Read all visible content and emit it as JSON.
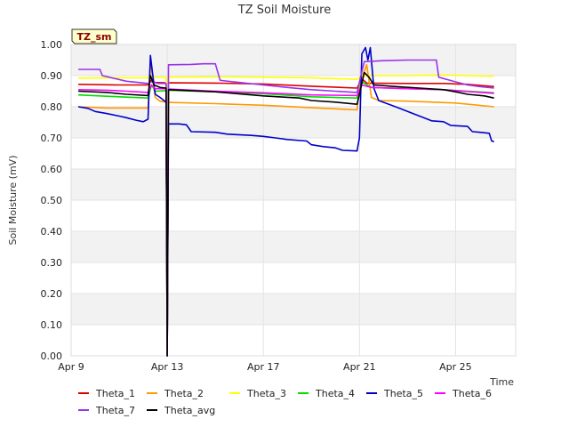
{
  "chart_data": {
    "type": "line",
    "title": "TZ Soil Moisture",
    "badge": "TZ_sm",
    "xlabel": "Time",
    "ylabel": "Soil Moisture (mV)",
    "xlim": [
      9.0,
      27.5
    ],
    "ylim": [
      0.0,
      1.0
    ],
    "x_ticks": [
      {
        "value": 9,
        "label": "Apr 9"
      },
      {
        "value": 13,
        "label": "Apr 13"
      },
      {
        "value": 17,
        "label": "Apr 17"
      },
      {
        "value": 21,
        "label": "Apr 21"
      },
      {
        "value": 25,
        "label": "Apr 25"
      }
    ],
    "y_ticks": [
      "0.00",
      "0.10",
      "0.20",
      "0.30",
      "0.40",
      "0.50",
      "0.60",
      "0.70",
      "0.80",
      "0.90",
      "1.00"
    ],
    "series": [
      {
        "name": "Theta_1",
        "color": "#dd0000",
        "points": [
          [
            9.3,
            0.872
          ],
          [
            11,
            0.87
          ],
          [
            12.2,
            0.87
          ],
          [
            12.35,
            0.885
          ],
          [
            12.5,
            0.878
          ],
          [
            12.95,
            0.877
          ],
          [
            13.0,
            0.0
          ],
          [
            13.05,
            0.877
          ],
          [
            15,
            0.876
          ],
          [
            17,
            0.873
          ],
          [
            19,
            0.866
          ],
          [
            20.9,
            0.86
          ],
          [
            21.1,
            0.89
          ],
          [
            21.3,
            0.876
          ],
          [
            23,
            0.875
          ],
          [
            24.5,
            0.875
          ],
          [
            25.5,
            0.872
          ],
          [
            26.6,
            0.865
          ]
        ]
      },
      {
        "name": "Theta_2",
        "color": "#ff9900",
        "points": [
          [
            9.3,
            0.8
          ],
          [
            10.5,
            0.796
          ],
          [
            12.2,
            0.796
          ],
          [
            12.3,
            0.95
          ],
          [
            12.5,
            0.83
          ],
          [
            12.7,
            0.818
          ],
          [
            12.95,
            0.815
          ],
          [
            13.0,
            0.0
          ],
          [
            13.05,
            0.814
          ],
          [
            15,
            0.81
          ],
          [
            17,
            0.805
          ],
          [
            19,
            0.797
          ],
          [
            20.9,
            0.79
          ],
          [
            21.0,
            0.87
          ],
          [
            21.3,
            0.935
          ],
          [
            21.5,
            0.83
          ],
          [
            21.8,
            0.82
          ],
          [
            23,
            0.818
          ],
          [
            25,
            0.812
          ],
          [
            26.6,
            0.8
          ]
        ]
      },
      {
        "name": "Theta_3",
        "color": "#ffff00",
        "points": [
          [
            9.3,
            0.892
          ],
          [
            11,
            0.893
          ],
          [
            12.2,
            0.893
          ],
          [
            12.3,
            0.895
          ],
          [
            12.95,
            0.895
          ],
          [
            13.0,
            0.0
          ],
          [
            13.05,
            0.895
          ],
          [
            15,
            0.896
          ],
          [
            17,
            0.895
          ],
          [
            19,
            0.893
          ],
          [
            20.9,
            0.888
          ],
          [
            21.1,
            0.9
          ],
          [
            23,
            0.9
          ],
          [
            24.5,
            0.902
          ],
          [
            26.6,
            0.898
          ]
        ]
      },
      {
        "name": "Theta_4",
        "color": "#00dd00",
        "points": [
          [
            9.3,
            0.838
          ],
          [
            11,
            0.832
          ],
          [
            12.2,
            0.828
          ],
          [
            12.35,
            0.87
          ],
          [
            12.5,
            0.85
          ],
          [
            12.95,
            0.852
          ],
          [
            13.0,
            0.0
          ],
          [
            13.05,
            0.853
          ],
          [
            15,
            0.848
          ],
          [
            17,
            0.842
          ],
          [
            19,
            0.832
          ],
          [
            20.9,
            0.828
          ],
          [
            21.1,
            0.88
          ],
          [
            21.5,
            0.862
          ],
          [
            23,
            0.858
          ],
          [
            24.5,
            0.855
          ],
          [
            25.5,
            0.85
          ],
          [
            26.6,
            0.845
          ]
        ]
      },
      {
        "name": "Theta_5",
        "color": "#0000cc",
        "points": [
          [
            9.3,
            0.8
          ],
          [
            9.7,
            0.795
          ],
          [
            10.0,
            0.785
          ],
          [
            10.5,
            0.778
          ],
          [
            11.0,
            0.77
          ],
          [
            11.3,
            0.765
          ],
          [
            11.7,
            0.757
          ],
          [
            12.0,
            0.752
          ],
          [
            12.2,
            0.76
          ],
          [
            12.3,
            0.965
          ],
          [
            12.4,
            0.9
          ],
          [
            12.5,
            0.84
          ],
          [
            12.7,
            0.83
          ],
          [
            12.95,
            0.815
          ],
          [
            13.0,
            0.0
          ],
          [
            13.05,
            0.745
          ],
          [
            13.5,
            0.745
          ],
          [
            13.8,
            0.742
          ],
          [
            14.0,
            0.72
          ],
          [
            15.0,
            0.718
          ],
          [
            15.5,
            0.712
          ],
          [
            16.5,
            0.708
          ],
          [
            17.0,
            0.705
          ],
          [
            17.5,
            0.7
          ],
          [
            18.0,
            0.695
          ],
          [
            18.8,
            0.69
          ],
          [
            19.0,
            0.678
          ],
          [
            19.5,
            0.672
          ],
          [
            20.0,
            0.668
          ],
          [
            20.3,
            0.66
          ],
          [
            20.9,
            0.658
          ],
          [
            21.0,
            0.7
          ],
          [
            21.1,
            0.97
          ],
          [
            21.25,
            0.99
          ],
          [
            21.35,
            0.95
          ],
          [
            21.45,
            0.99
          ],
          [
            21.6,
            0.86
          ],
          [
            21.8,
            0.82
          ],
          [
            22.5,
            0.8
          ],
          [
            23.0,
            0.785
          ],
          [
            23.5,
            0.77
          ],
          [
            24.0,
            0.755
          ],
          [
            24.5,
            0.752
          ],
          [
            24.8,
            0.74
          ],
          [
            25.5,
            0.737
          ],
          [
            25.7,
            0.72
          ],
          [
            26.0,
            0.718
          ],
          [
            26.4,
            0.715
          ],
          [
            26.5,
            0.69
          ],
          [
            26.6,
            0.688
          ]
        ]
      },
      {
        "name": "Theta_6",
        "color": "#ff00ff",
        "points": [
          [
            9.3,
            0.855
          ],
          [
            10.5,
            0.853
          ],
          [
            11.3,
            0.85
          ],
          [
            12.2,
            0.846
          ],
          [
            12.35,
            0.87
          ],
          [
            12.5,
            0.858
          ],
          [
            12.95,
            0.858
          ],
          [
            13.0,
            0.0
          ],
          [
            13.05,
            0.857
          ],
          [
            15,
            0.85
          ],
          [
            17,
            0.845
          ],
          [
            19,
            0.838
          ],
          [
            20.9,
            0.836
          ],
          [
            21.1,
            0.87
          ],
          [
            21.5,
            0.862
          ],
          [
            23,
            0.858
          ],
          [
            24.5,
            0.855
          ],
          [
            25.3,
            0.85
          ],
          [
            26.6,
            0.843
          ]
        ]
      },
      {
        "name": "Theta_7",
        "color": "#9933ee",
        "points": [
          [
            9.3,
            0.92
          ],
          [
            10.2,
            0.92
          ],
          [
            10.3,
            0.9
          ],
          [
            11.3,
            0.882
          ],
          [
            12.2,
            0.875
          ],
          [
            12.3,
            0.88
          ],
          [
            12.4,
            0.88
          ],
          [
            12.6,
            0.875
          ],
          [
            12.95,
            0.875
          ],
          [
            13.0,
            0.0
          ],
          [
            13.05,
            0.935
          ],
          [
            14.0,
            0.936
          ],
          [
            14.5,
            0.938
          ],
          [
            15.0,
            0.938
          ],
          [
            15.2,
            0.885
          ],
          [
            16.0,
            0.878
          ],
          [
            17.0,
            0.87
          ],
          [
            18.0,
            0.862
          ],
          [
            19.0,
            0.855
          ],
          [
            20.0,
            0.85
          ],
          [
            20.9,
            0.846
          ],
          [
            21.0,
            0.88
          ],
          [
            21.2,
            0.945
          ],
          [
            22.0,
            0.948
          ],
          [
            23.0,
            0.95
          ],
          [
            23.5,
            0.95
          ],
          [
            24.2,
            0.95
          ],
          [
            24.3,
            0.895
          ],
          [
            25.0,
            0.88
          ],
          [
            25.5,
            0.87
          ],
          [
            26.0,
            0.865
          ],
          [
            26.6,
            0.86
          ]
        ]
      },
      {
        "name": "Theta_avg",
        "color": "#000000",
        "points": [
          [
            9.3,
            0.85
          ],
          [
            10.5,
            0.846
          ],
          [
            11.3,
            0.84
          ],
          [
            12.2,
            0.836
          ],
          [
            12.3,
            0.9
          ],
          [
            12.45,
            0.87
          ],
          [
            12.7,
            0.862
          ],
          [
            12.95,
            0.86
          ],
          [
            13.0,
            0.0
          ],
          [
            13.05,
            0.855
          ],
          [
            15,
            0.848
          ],
          [
            17,
            0.835
          ],
          [
            18.5,
            0.828
          ],
          [
            19.0,
            0.82
          ],
          [
            20.0,
            0.815
          ],
          [
            20.9,
            0.808
          ],
          [
            21.0,
            0.84
          ],
          [
            21.2,
            0.91
          ],
          [
            21.4,
            0.895
          ],
          [
            21.6,
            0.87
          ],
          [
            22.5,
            0.865
          ],
          [
            23.5,
            0.86
          ],
          [
            24.5,
            0.855
          ],
          [
            25.0,
            0.848
          ],
          [
            25.5,
            0.84
          ],
          [
            26.2,
            0.835
          ],
          [
            26.6,
            0.828
          ]
        ]
      }
    ]
  }
}
